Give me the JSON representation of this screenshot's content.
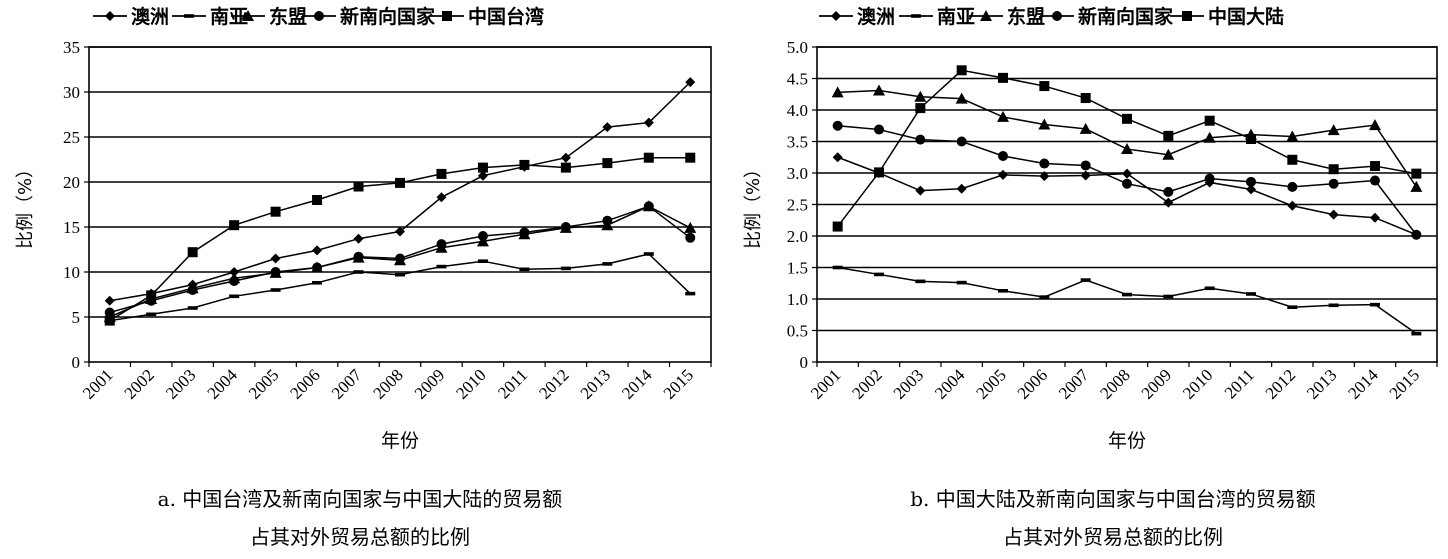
{
  "chart_data": [
    {
      "type": "line",
      "ylabel": "比例（%）",
      "xlabel": "年份",
      "x": [
        "2001",
        "2002",
        "2003",
        "2004",
        "2005",
        "2006",
        "2007",
        "2008",
        "2009",
        "2010",
        "2011",
        "2012",
        "2013",
        "2014",
        "2015"
      ],
      "ylim": [
        0,
        35
      ],
      "yticks": [
        0,
        5,
        10,
        15,
        20,
        25,
        30,
        35
      ],
      "yticklabels": [
        "0",
        "5",
        "10",
        "15",
        "20",
        "25",
        "30",
        "35"
      ],
      "grid": true,
      "legend": "top",
      "series": [
        {
          "name": "澳洲",
          "marker": "diamond",
          "values": [
            6.8,
            7.6,
            8.6,
            10.0,
            11.5,
            12.4,
            13.7,
            14.5,
            18.3,
            20.7,
            21.7,
            22.7,
            26.1,
            26.6,
            31.1
          ]
        },
        {
          "name": "南亚",
          "marker": "dash",
          "values": [
            4.6,
            5.3,
            6.0,
            7.3,
            8.0,
            8.8,
            10.0,
            9.7,
            10.6,
            11.2,
            10.3,
            10.4,
            10.9,
            12.0,
            7.6
          ]
        },
        {
          "name": "东盟",
          "marker": "triangle",
          "values": [
            5.0,
            7.0,
            8.2,
            9.3,
            9.9,
            10.5,
            11.6,
            11.3,
            12.7,
            13.4,
            14.2,
            14.9,
            15.2,
            17.3,
            14.9
          ]
        },
        {
          "name": "新南向国家",
          "marker": "circle",
          "values": [
            5.5,
            6.8,
            8.0,
            9.0,
            10.0,
            10.5,
            11.7,
            11.5,
            13.1,
            14.0,
            14.4,
            15.0,
            15.7,
            17.3,
            13.8
          ]
        },
        {
          "name": "中国台湾",
          "marker": "square",
          "values": [
            4.6,
            7.4,
            12.2,
            15.2,
            16.7,
            18.0,
            19.5,
            19.9,
            20.9,
            21.6,
            21.9,
            21.6,
            22.1,
            22.7,
            22.7
          ]
        }
      ]
    },
    {
      "type": "line",
      "ylabel": "比例（%）",
      "xlabel": "年份",
      "x": [
        "2001",
        "2002",
        "2003",
        "2004",
        "2005",
        "2006",
        "2007",
        "2008",
        "2009",
        "2010",
        "2011",
        "2012",
        "2013",
        "2014",
        "2015"
      ],
      "ylim": [
        0,
        5.0
      ],
      "yticks": [
        0,
        0.5,
        1.0,
        1.5,
        2.0,
        2.5,
        3.0,
        3.5,
        4.0,
        4.5,
        5.0
      ],
      "yticklabels": [
        "0",
        "0.5",
        "1.0",
        "1.5",
        "2.0",
        "2.5",
        "3.0",
        "3.5",
        "4.0",
        "4.5",
        "5.0"
      ],
      "grid": true,
      "legend": "top",
      "series": [
        {
          "name": "澳洲",
          "marker": "diamond",
          "values": [
            3.25,
            3.0,
            2.72,
            2.75,
            2.97,
            2.95,
            2.96,
            2.99,
            2.53,
            2.85,
            2.74,
            2.48,
            2.34,
            2.29,
            2.02
          ]
        },
        {
          "name": "南亚",
          "marker": "dash",
          "values": [
            1.5,
            1.39,
            1.28,
            1.26,
            1.13,
            1.03,
            1.3,
            1.07,
            1.04,
            1.17,
            1.08,
            0.87,
            0.9,
            0.91,
            0.45
          ]
        },
        {
          "name": "东盟",
          "marker": "triangle",
          "values": [
            4.28,
            4.31,
            4.21,
            4.18,
            3.89,
            3.77,
            3.7,
            3.38,
            3.29,
            3.56,
            3.61,
            3.58,
            3.68,
            3.76,
            2.78
          ]
        },
        {
          "name": "新南向国家",
          "marker": "circle",
          "values": [
            3.75,
            3.69,
            3.53,
            3.5,
            3.27,
            3.15,
            3.12,
            2.83,
            2.7,
            2.91,
            2.86,
            2.78,
            2.83,
            2.88,
            2.02
          ]
        },
        {
          "name": "中国大陆",
          "marker": "square",
          "values": [
            2.15,
            3.01,
            4.03,
            4.63,
            4.51,
            4.38,
            4.19,
            3.86,
            3.59,
            3.83,
            3.54,
            3.21,
            3.06,
            3.11,
            2.99
          ]
        }
      ]
    }
  ],
  "captions": {
    "a_line1": "a. 中国台湾及新南向国家与中国大陆的贸易额",
    "a_line2": "占其对外贸易总额的比例",
    "b_line1": "b. 中国大陆及新南向国家与中国台湾的贸易额",
    "b_line2": "占其对外贸易总额的比例"
  }
}
